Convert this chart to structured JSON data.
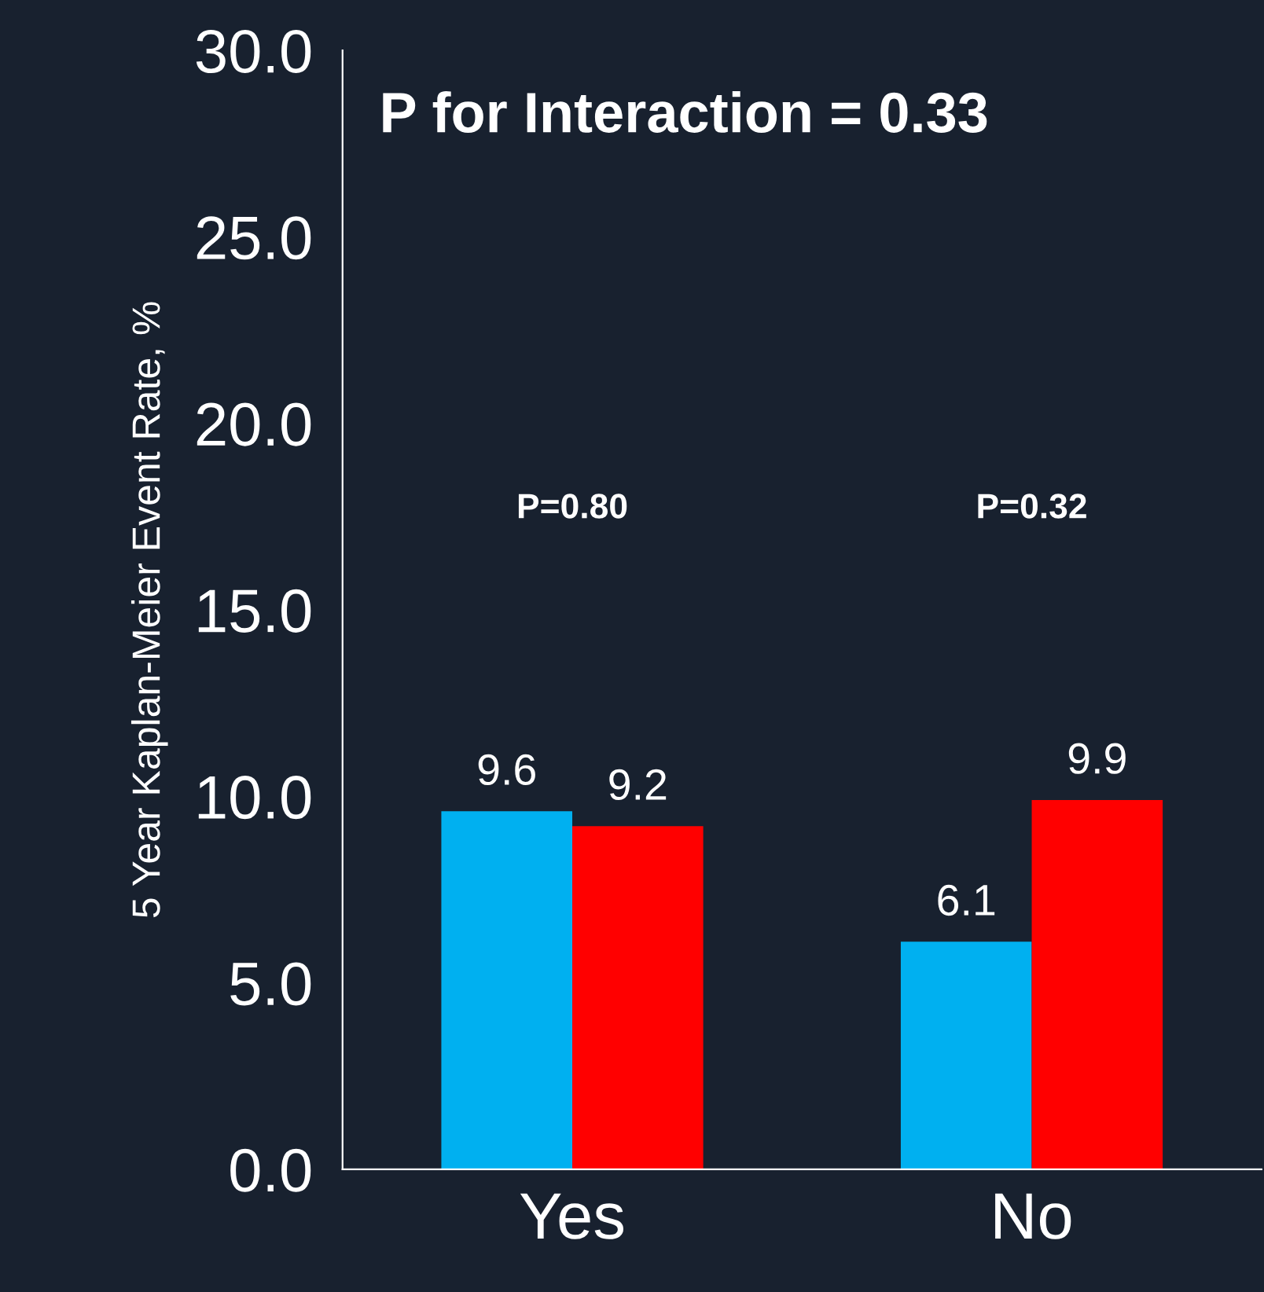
{
  "chart_data": {
    "type": "bar",
    "ylabel": "5 Year Kaplan-Meier Event Rate, %",
    "categories": [
      "Yes",
      "No"
    ],
    "series": [
      {
        "color": "#00b0f0",
        "values": [
          9.6,
          6.1
        ]
      },
      {
        "color": "#ff0000",
        "values": [
          9.2,
          9.9
        ]
      }
    ],
    "ylim": [
      0,
      30
    ],
    "yticks": [
      {
        "value": 0,
        "label": "0.0"
      },
      {
        "value": 5,
        "label": "5.0"
      },
      {
        "value": 10,
        "label": "10.0"
      },
      {
        "value": 15,
        "label": "15.0"
      },
      {
        "value": 20,
        "label": "20.0"
      },
      {
        "value": 25,
        "label": "25.0"
      },
      {
        "value": 30,
        "label": "30.0"
      }
    ],
    "data_labels": true,
    "grid": false,
    "legend": false,
    "annotations": [
      "P for Interaction = 0.33",
      "P=0.80",
      "P=0.32"
    ]
  }
}
